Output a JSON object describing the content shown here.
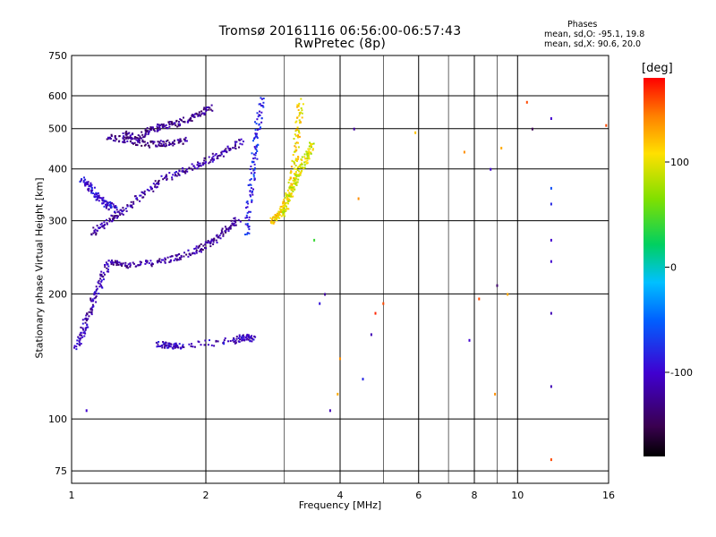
{
  "title": "Tromsø 20161116 06:56:00-06:57:43",
  "subtitle": "RwPretec (8p)",
  "phases": {
    "heading": "Phases",
    "line_o": "mean, sd,O: -95.1, 19.8",
    "line_x": "mean, sd,X:  90.6, 20.0"
  },
  "chart_data": {
    "type": "scatter",
    "xlabel": "Frequency [MHz]",
    "ylabel": "Stationary phase Virtual Height [km]",
    "xscale": "log",
    "yscale": "log",
    "xlim": [
      1,
      16
    ],
    "ylim": [
      70,
      750
    ],
    "x_major_ticks": [
      1,
      2,
      4,
      6,
      8,
      10,
      16
    ],
    "x_minor_ticks": [
      3,
      5,
      7,
      9
    ],
    "x_tick_labels": [
      "1",
      "2",
      "4",
      "6",
      "8",
      "10",
      "16"
    ],
    "y_ticks": [
      75,
      100,
      200,
      300,
      400,
      500,
      600,
      750
    ],
    "y_tick_labels": [
      "75",
      "100",
      "200",
      "300",
      "400",
      "500",
      "600",
      "750"
    ],
    "grid": true,
    "colorbar": {
      "label": "[deg]",
      "range": [
        -180,
        180
      ],
      "ticks": [
        100,
        0,
        -100
      ],
      "tick_labels": [
        "100",
        "0",
        "-100"
      ]
    },
    "colors": {
      "ordinary_phase": "#3050e0",
      "extraordinary_phase": "#e8d020",
      "grid": "#000000"
    },
    "traces": [
      {
        "name": "",
        "phase": -120,
        "f": [
          1.2,
          1.3,
          1.5,
          1.7,
          1.9,
          2.05,
          2.2,
          2.35
        ],
        "h": [
          240,
          236,
          238,
          245,
          255,
          268,
          285,
          305
        ]
      },
      {
        "name": "",
        "phase": -110,
        "f": [
          1.02,
          1.06,
          1.1,
          1.15,
          1.2
        ],
        "h": [
          150,
          165,
          185,
          210,
          240
        ]
      },
      {
        "name": "",
        "phase": -115,
        "f": [
          1.1,
          1.2,
          1.3,
          1.45,
          1.6,
          1.8,
          2.0,
          2.2,
          2.4
        ],
        "h": [
          280,
          300,
          320,
          350,
          380,
          400,
          420,
          440,
          470
        ]
      },
      {
        "name": "",
        "phase": -125,
        "f": [
          1.3,
          1.4,
          1.5,
          1.6,
          1.75,
          1.9,
          2.05
        ],
        "h": [
          490,
          475,
          500,
          510,
          520,
          540,
          565
        ]
      },
      {
        "name": "",
        "phase": -130,
        "f": [
          1.2,
          1.35,
          1.5,
          1.65,
          1.8
        ],
        "h": [
          480,
          470,
          460,
          465,
          470
        ]
      },
      {
        "name": "",
        "phase": -80,
        "f": [
          2.45,
          2.5,
          2.55,
          2.6,
          2.65
        ],
        "h": [
          280,
          350,
          420,
          500,
          600
        ]
      },
      {
        "name": "",
        "phase": -95,
        "f": [
          1.05,
          1.1,
          1.15,
          1.2,
          1.25
        ],
        "h": [
          380,
          360,
          340,
          330,
          320
        ]
      },
      {
        "name": "",
        "phase": 110,
        "f": [
          2.8,
          2.9,
          3.0,
          3.1,
          3.15,
          3.2,
          3.25
        ],
        "h": [
          300,
          310,
          330,
          370,
          420,
          500,
          590
        ]
      },
      {
        "name": "",
        "phase": 95,
        "f": [
          2.95,
          3.05,
          3.15,
          3.25,
          3.35,
          3.45
        ],
        "h": [
          310,
          340,
          370,
          400,
          430,
          460
        ]
      },
      {
        "name": "",
        "phase": -105,
        "f": [
          1.55,
          1.65,
          1.75,
          2.3,
          2.45,
          2.55
        ],
        "h": [
          152,
          150,
          151,
          155,
          158,
          157
        ]
      }
    ],
    "scattered_points": [
      {
        "f": 4.3,
        "h": 500,
        "phase": -120
      },
      {
        "f": 4.4,
        "h": 340,
        "phase": 140
      },
      {
        "f": 5.9,
        "h": 490,
        "phase": 120
      },
      {
        "f": 7.6,
        "h": 440,
        "phase": 140
      },
      {
        "f": 8.7,
        "h": 400,
        "phase": -100
      },
      {
        "f": 9.2,
        "h": 450,
        "phase": 130
      },
      {
        "f": 10.8,
        "h": 500,
        "phase": -150
      },
      {
        "f": 11.9,
        "h": 530,
        "phase": -100
      },
      {
        "f": 11.9,
        "h": 360,
        "phase": -60
      },
      {
        "f": 11.9,
        "h": 330,
        "phase": -80
      },
      {
        "f": 11.9,
        "h": 270,
        "phase": -100
      },
      {
        "f": 11.9,
        "h": 240,
        "phase": -100
      },
      {
        "f": 11.9,
        "h": 180,
        "phase": -110
      },
      {
        "f": 11.9,
        "h": 120,
        "phase": -110
      },
      {
        "f": 11.9,
        "h": 80,
        "phase": 160
      },
      {
        "f": 10.5,
        "h": 580,
        "phase": 160
      },
      {
        "f": 9.0,
        "h": 210,
        "phase": -140
      },
      {
        "f": 9.5,
        "h": 200,
        "phase": 130
      },
      {
        "f": 8.2,
        "h": 195,
        "phase": 160
      },
      {
        "f": 7.8,
        "h": 155,
        "phase": -100
      },
      {
        "f": 3.8,
        "h": 105,
        "phase": -110
      },
      {
        "f": 3.7,
        "h": 200,
        "phase": -120
      },
      {
        "f": 3.6,
        "h": 190,
        "phase": -90
      },
      {
        "f": 4.0,
        "h": 140,
        "phase": 140
      },
      {
        "f": 4.5,
        "h": 125,
        "phase": -80
      },
      {
        "f": 4.8,
        "h": 180,
        "phase": 170
      },
      {
        "f": 5.0,
        "h": 190,
        "phase": 160
      },
      {
        "f": 4.7,
        "h": 160,
        "phase": -110
      },
      {
        "f": 3.5,
        "h": 270,
        "phase": 40
      },
      {
        "f": 15.8,
        "h": 510,
        "phase": 160
      },
      {
        "f": 1.08,
        "h": 105,
        "phase": -100
      },
      {
        "f": 3.95,
        "h": 115,
        "phase": 130
      },
      {
        "f": 8.9,
        "h": 115,
        "phase": 140
      }
    ]
  }
}
